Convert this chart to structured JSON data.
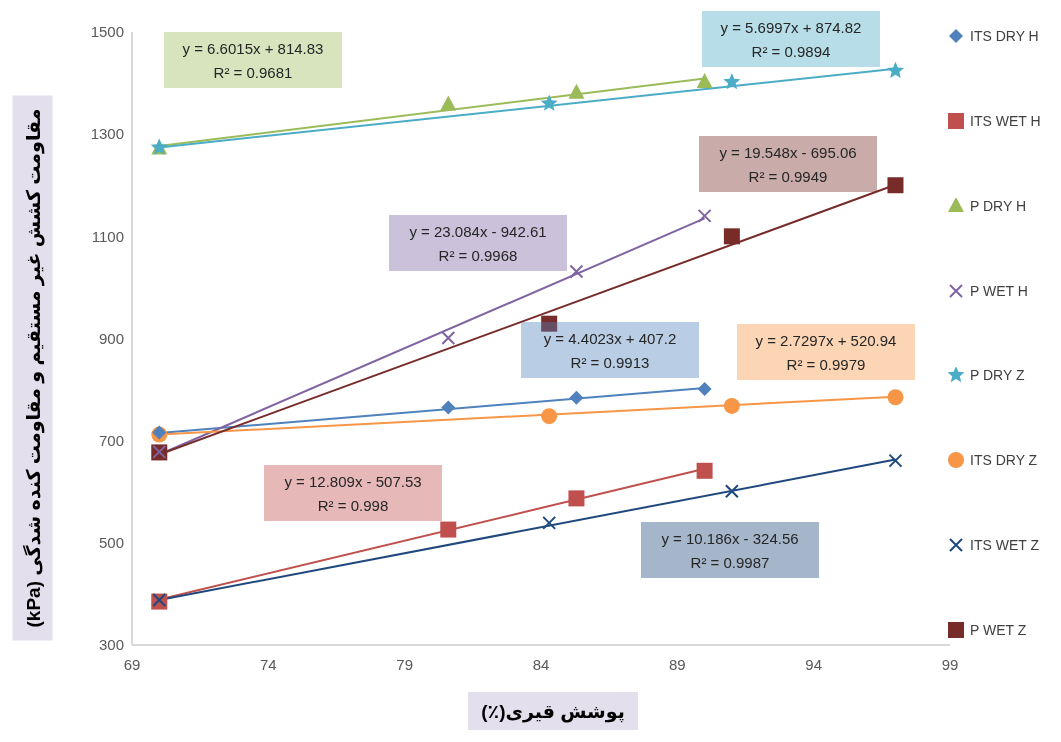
{
  "chart_data": {
    "type": "scatter",
    "xlabel": "پوشش قیری(٪)",
    "ylabel": "مقاومت کشش غیر مستقیم و مقاومت کنده شدگی (kPa)",
    "xlim": [
      69,
      99
    ],
    "xticks": [
      69,
      74,
      79,
      84,
      89,
      94,
      99
    ],
    "ylim": [
      300,
      1500
    ],
    "yticks": [
      300,
      500,
      700,
      900,
      1100,
      1300,
      1500
    ],
    "legend": "right",
    "series": [
      {
        "name": "ITS DRY H",
        "color": "#4f81bd",
        "marker": "diamond",
        "x": [
          70,
          80.6,
          85.3,
          90
        ],
        "values": [
          716,
          765,
          784,
          801
        ]
      },
      {
        "name": "ITS WET H",
        "color": "#c0504d",
        "marker": "square",
        "x": [
          70,
          80.6,
          85.3,
          90
        ],
        "values": [
          385,
          526,
          587,
          641
        ]
      },
      {
        "name": "P DRY H",
        "color": "#9bbb59",
        "marker": "triangle",
        "x": [
          70,
          80.6,
          85.3,
          90
        ],
        "values": [
          1272,
          1358,
          1381,
          1402
        ]
      },
      {
        "name": "P WET H",
        "color": "#8064a2",
        "marker": "cross",
        "x": [
          70,
          80.6,
          85.3,
          90
        ],
        "values": [
          678,
          901,
          1031,
          1140
        ]
      },
      {
        "name": "P DRY Z",
        "color": "#4bacc6",
        "marker": "star",
        "x": [
          70,
          84.3,
          91,
          97
        ],
        "values": [
          1274,
          1360,
          1402,
          1424
        ]
      },
      {
        "name": "ITS DRY Z",
        "color": "#f79646",
        "marker": "circle",
        "x": [
          70,
          84.3,
          91,
          97
        ],
        "values": [
          712,
          748,
          768,
          785
        ]
      },
      {
        "name": "ITS WET Z",
        "color": "#1f497d",
        "marker": "cross",
        "x": [
          70,
          84.3,
          91,
          97
        ],
        "values": [
          388,
          539,
          601,
          661
        ]
      },
      {
        "name": "P WET Z",
        "color": "#772c2a",
        "marker": "square",
        "x": [
          70,
          84.3,
          91,
          97
        ],
        "values": [
          677,
          929,
          1100,
          1200
        ]
      },
      {
        "type": "line",
        "color": "#4f81bd",
        "marker": "none",
        "x": [
          70,
          90
        ],
        "values": [
          715,
          803
        ]
      },
      {
        "type": "line",
        "color": "#c0504d",
        "marker": "none",
        "x": [
          70,
          90
        ],
        "values": [
          389,
          645
        ]
      },
      {
        "type": "line",
        "color": "#9bbb59",
        "marker": "none",
        "x": [
          70,
          90
        ],
        "values": [
          1277,
          1409
        ]
      },
      {
        "type": "line",
        "color": "#8064a2",
        "marker": "none",
        "x": [
          70,
          90
        ],
        "values": [
          673,
          1135
        ]
      },
      {
        "type": "line",
        "color": "#4bacc6",
        "marker": "none",
        "x": [
          70,
          97
        ],
        "values": [
          1274,
          1428
        ]
      },
      {
        "type": "line",
        "color": "#f79646",
        "marker": "none",
        "x": [
          70,
          97
        ],
        "values": [
          712,
          786
        ]
      },
      {
        "type": "line",
        "color": "#1f497d",
        "marker": "none",
        "x": [
          70,
          97
        ],
        "values": [
          388,
          663
        ]
      },
      {
        "type": "line",
        "color": "#772c2a",
        "marker": "none",
        "x": [
          70,
          97
        ],
        "values": [
          673,
          1201
        ]
      }
    ],
    "annotations": [
      "y = 4.4023x + 407.2\nR² = 0.9913",
      "y = 12.809x - 507.53\nR² = 0.998",
      "y = 6.6015x + 814.83\nR² = 0.9681",
      "y = 23.084x - 942.61\nR² = 0.9968",
      "y = 5.6997x + 874.82\nR² = 0.9894",
      "y = 2.7297x + 520.94\nR² = 0.9979",
      "y = 10.186x - 324.56\nR² = 0.9987",
      "y = 19.548x - 695.06\nR² = 0.9949"
    ]
  }
}
